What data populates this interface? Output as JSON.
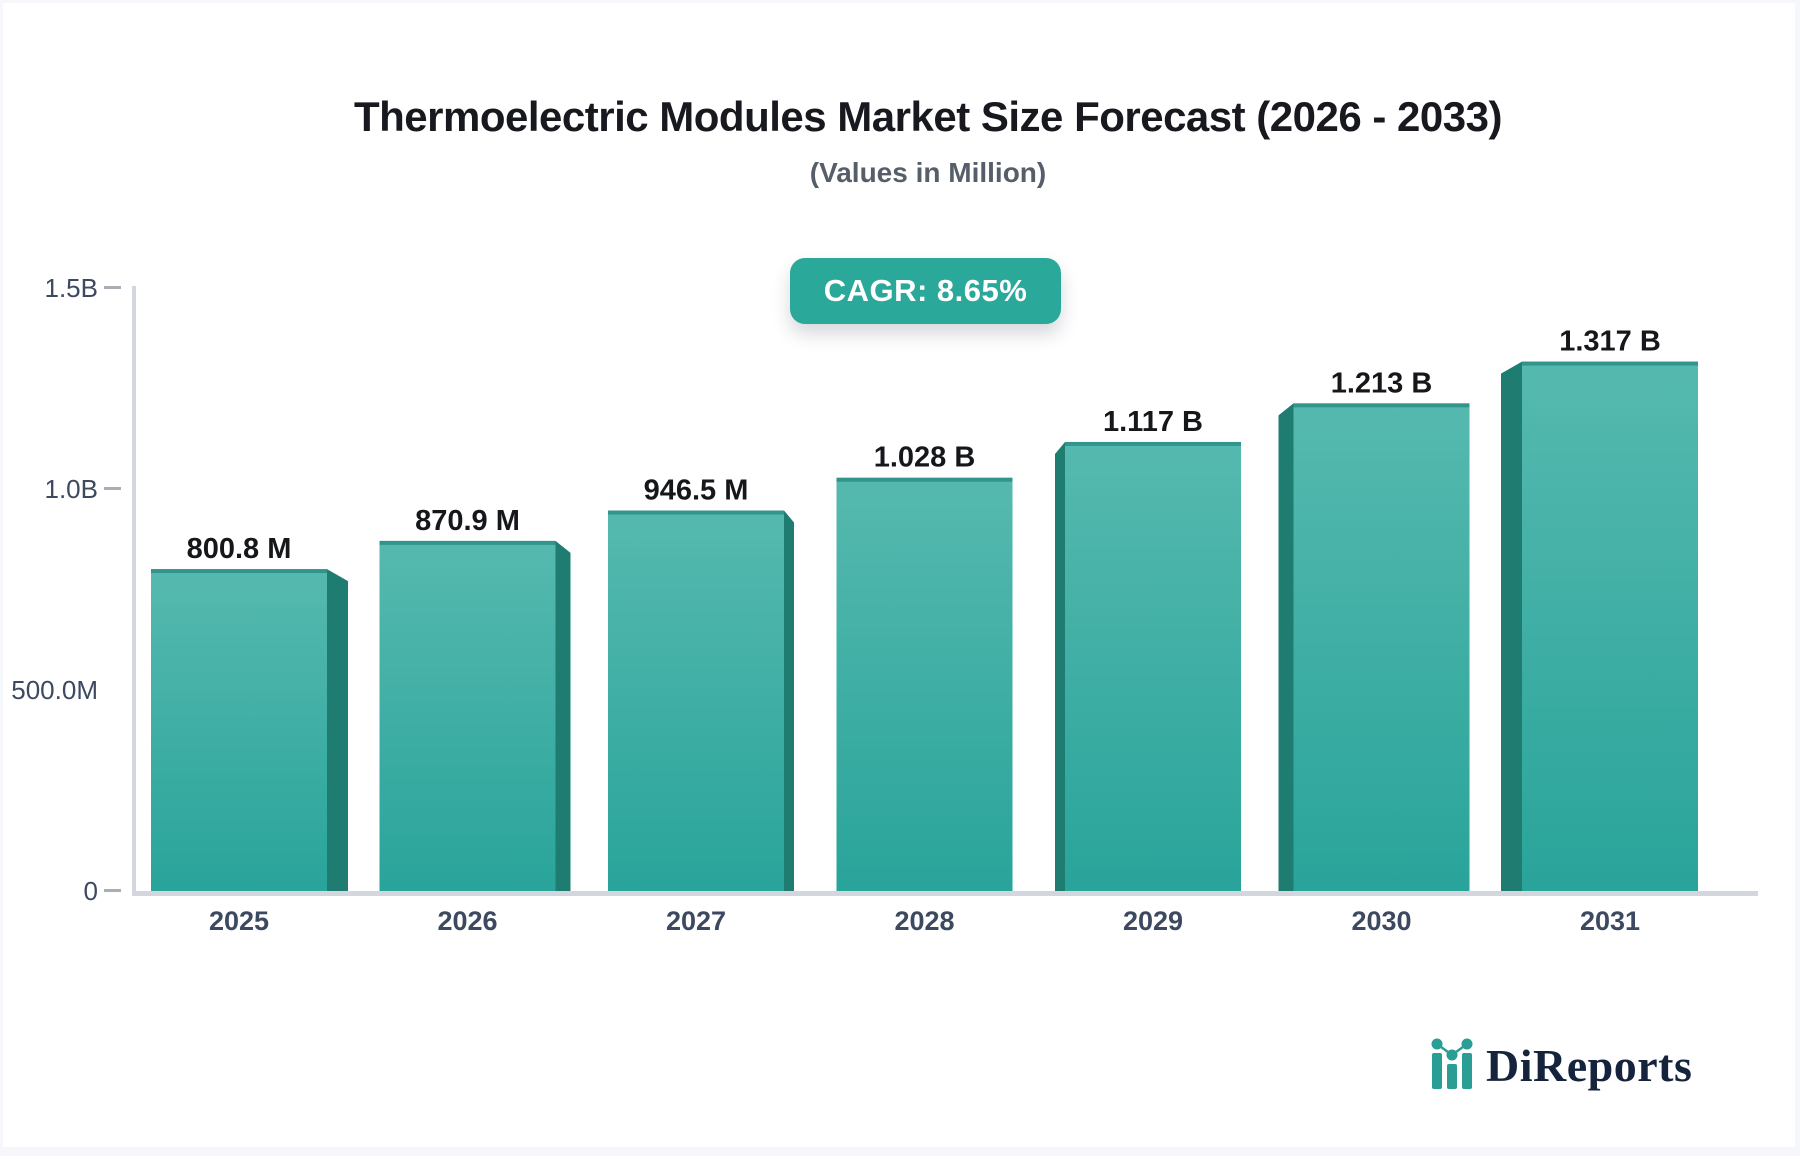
{
  "title": "Thermoelectric Modules Market Size Forecast (2026 - 2033)",
  "subtitle": "(Values in Million)",
  "badge": {
    "label": "CAGR: 8.65%"
  },
  "logo": {
    "text": "DiReports",
    "icon": "bar-chart-logo-icon"
  },
  "colors": {
    "bar_face_top": "#56b9af",
    "bar_face_bottom": "#29a49a",
    "bar_side": "#1e7c71",
    "bar_lip": "#2f9187",
    "badge_bg": "#2aa89a",
    "axis_line": "#d3d6dd",
    "tick_dash": "#a8aeb8",
    "axis_label": "#3d4960",
    "value_label": "#15171b",
    "logo_text": "#15233d",
    "logo_icon": "#2a9d94"
  },
  "chart_data": {
    "type": "bar",
    "title": "Thermoelectric Modules Market Size Forecast (2026 - 2033)",
    "subtitle": "(Values in Million)",
    "annotation": "CAGR: 8.65%",
    "categories": [
      "2025",
      "2026",
      "2027",
      "2028",
      "2029",
      "2030",
      "2031"
    ],
    "values_million": [
      800.8,
      870.9,
      946.5,
      1028,
      1117,
      1213,
      1317
    ],
    "value_labels": [
      "800.8 M",
      "870.9 M",
      "946.5 M",
      "1.028 B",
      "1.117 B",
      "1.213 B",
      "1.317 B"
    ],
    "xlabel": "",
    "ylabel": "",
    "ylim_million": [
      0,
      1500
    ],
    "y_ticks": [
      {
        "label": "1.5B",
        "value_million": 1500,
        "dash": true
      },
      {
        "label": "1.0B",
        "value_million": 1000,
        "dash": true
      },
      {
        "label": "500.0M",
        "value_million": 500,
        "dash": false
      },
      {
        "label": "0",
        "value_million": 0,
        "dash": true
      }
    ],
    "grid": false,
    "legend": false,
    "bar_style": "3d-perspective-teal"
  }
}
